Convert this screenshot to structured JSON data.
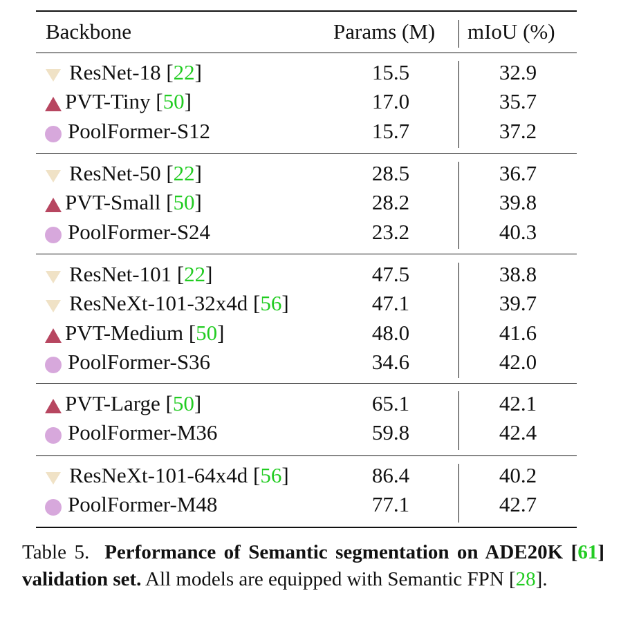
{
  "table": {
    "columns": {
      "backbone": "Backbone",
      "params": "Params (M)",
      "miou": "mIoU (%)"
    },
    "groups": [
      {
        "rows": [
          {
            "icon": "triangle-down",
            "name": "ResNet-18",
            "ref": "22",
            "params": "15.5",
            "miou": "32.9"
          },
          {
            "icon": "triangle-up",
            "name": "PVT-Tiny",
            "ref": "50",
            "params": "17.0",
            "miou": "35.7"
          },
          {
            "icon": "circle",
            "name": "PoolFormer-S12",
            "ref": "",
            "params": "15.7",
            "miou": "37.2"
          }
        ]
      },
      {
        "rows": [
          {
            "icon": "triangle-down",
            "name": "ResNet-50",
            "ref": "22",
            "params": "28.5",
            "miou": "36.7"
          },
          {
            "icon": "triangle-up",
            "name": "PVT-Small",
            "ref": "50",
            "params": "28.2",
            "miou": "39.8"
          },
          {
            "icon": "circle",
            "name": "PoolFormer-S24",
            "ref": "",
            "params": "23.2",
            "miou": "40.3"
          }
        ]
      },
      {
        "rows": [
          {
            "icon": "triangle-down",
            "name": "ResNet-101",
            "ref": "22",
            "params": "47.5",
            "miou": "38.8"
          },
          {
            "icon": "triangle-down",
            "name": "ResNeXt-101-32x4d",
            "ref": "56",
            "params": "47.1",
            "miou": "39.7"
          },
          {
            "icon": "triangle-up",
            "name": "PVT-Medium",
            "ref": "50",
            "params": "48.0",
            "miou": "41.6"
          },
          {
            "icon": "circle",
            "name": "PoolFormer-S36",
            "ref": "",
            "params": "34.6",
            "miou": "42.0"
          }
        ]
      },
      {
        "rows": [
          {
            "icon": "triangle-up",
            "name": "PVT-Large",
            "ref": "50",
            "params": "65.1",
            "miou": "42.1"
          },
          {
            "icon": "circle",
            "name": "PoolFormer-M36",
            "ref": "",
            "params": "59.8",
            "miou": "42.4"
          }
        ]
      },
      {
        "rows": [
          {
            "icon": "triangle-down",
            "name": "ResNeXt-101-64x4d",
            "ref": "56",
            "params": "86.4",
            "miou": "40.2"
          },
          {
            "icon": "circle",
            "name": "PoolFormer-M48",
            "ref": "",
            "params": "77.1",
            "miou": "42.7"
          }
        ]
      }
    ]
  },
  "caption": {
    "label": "Table 5.",
    "bold_part1": "Performance of Semantic segmentation on ADE20K [",
    "bold_ref": "61",
    "bold_part2": "] validation set.",
    "text_part1": " All models are equipped with Semantic FPN [",
    "text_ref": "28",
    "text_part2": "]."
  },
  "colors": {
    "triangle_down": "#f0e2c6",
    "triangle_up": "#b74660",
    "circle": "#d7a8dc",
    "reference_link": "#22cc22"
  }
}
